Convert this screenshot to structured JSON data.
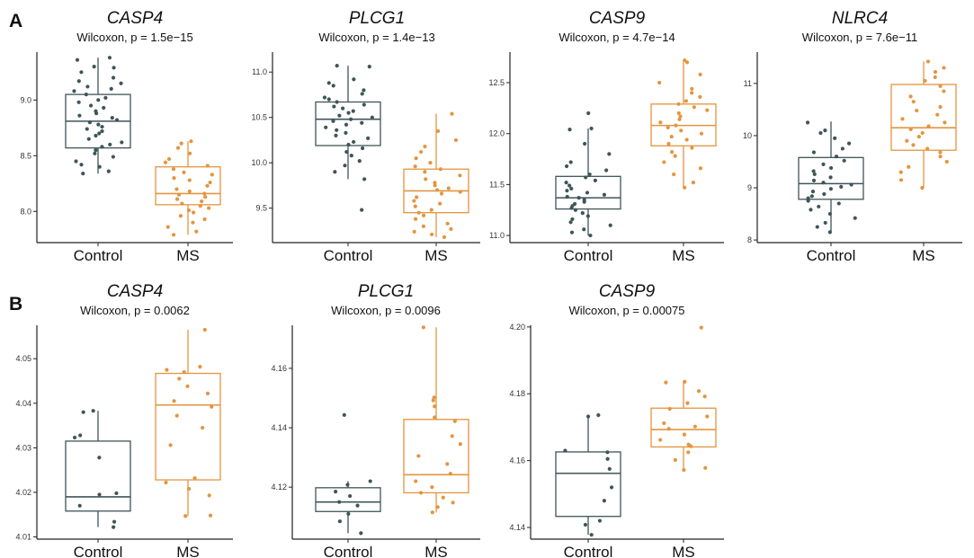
{
  "panel_labels": [
    "A",
    "B"
  ],
  "style": {
    "control_color": "#3f5559",
    "ms_color": "#e3953f"
  },
  "chart_data": [
    {
      "type": "box",
      "panel": "A",
      "title": "CASP4",
      "subtitle": "Wilcoxon, p = 1.5e−15",
      "categories": [
        "Control",
        "MS"
      ],
      "ylim": [
        7.72,
        9.43
      ],
      "yticks": [
        8.0,
        8.5,
        9.0
      ],
      "ytick_labels": [
        "8.0",
        "8.5",
        "9.0"
      ],
      "boxes": [
        {
          "category": "Control",
          "min": 8.34,
          "q1": 8.57,
          "median": 8.81,
          "q3": 9.05,
          "max": 9.38
        },
        {
          "category": "MS",
          "min": 7.79,
          "q1": 8.06,
          "median": 8.16,
          "q3": 8.4,
          "max": 8.63
        }
      ],
      "points": [
        [
          9.38,
          9.36,
          9.3,
          9.29,
          9.25,
          9.2,
          9.17,
          9.15,
          9.12,
          9.1,
          9.08,
          9.05,
          9.02,
          9.0,
          8.98,
          8.95,
          8.93,
          8.9,
          8.88,
          8.86,
          8.84,
          8.82,
          8.8,
          8.78,
          8.76,
          8.74,
          8.72,
          8.7,
          8.68,
          8.65,
          8.62,
          8.6,
          8.58,
          8.55,
          8.52,
          8.49,
          8.45,
          8.42,
          8.4,
          8.36,
          8.34
        ],
        [
          8.63,
          8.61,
          8.57,
          8.52,
          8.47,
          8.44,
          8.41,
          8.38,
          8.35,
          8.33,
          8.3,
          8.28,
          8.26,
          8.23,
          8.2,
          8.18,
          8.16,
          8.15,
          8.13,
          8.11,
          8.09,
          8.07,
          8.05,
          8.03,
          8.01,
          7.99,
          7.96,
          7.93,
          7.9,
          7.86,
          7.82,
          7.79
        ]
      ]
    },
    {
      "type": "box",
      "panel": "A",
      "title": "PLCG1",
      "subtitle": "Wilcoxon, p = 1.4e−13",
      "categories": [
        "Control",
        "MS"
      ],
      "ylim": [
        9.12,
        11.22
      ],
      "yticks": [
        9.5,
        10.0,
        10.5,
        11.0
      ],
      "ytick_labels": [
        "9.5",
        "10.0",
        "10.5",
        "11.0"
      ],
      "boxes": [
        {
          "category": "Control",
          "min": 9.82,
          "q1": 10.19,
          "median": 10.48,
          "q3": 10.67,
          "max": 11.07
        },
        {
          "category": "MS",
          "min": 9.18,
          "q1": 9.45,
          "median": 9.69,
          "q3": 9.93,
          "max": 10.54
        }
      ],
      "points": [
        [
          11.07,
          11.06,
          10.92,
          10.88,
          10.85,
          10.8,
          10.76,
          10.72,
          10.7,
          10.67,
          10.64,
          10.62,
          10.6,
          10.57,
          10.55,
          10.52,
          10.5,
          10.48,
          10.46,
          10.44,
          10.42,
          10.39,
          10.36,
          10.33,
          10.3,
          10.27,
          10.23,
          10.2,
          10.16,
          10.12,
          10.08,
          10.02,
          9.97,
          9.9,
          9.82,
          9.48
        ],
        [
          10.54,
          10.35,
          10.25,
          10.18,
          10.12,
          10.05,
          10.0,
          9.96,
          9.93,
          9.9,
          9.86,
          9.82,
          9.78,
          9.75,
          9.72,
          9.7,
          9.68,
          9.66,
          9.62,
          9.58,
          9.55,
          9.52,
          9.48,
          9.45,
          9.42,
          9.38,
          9.33,
          9.3,
          9.27,
          9.24,
          9.21,
          9.18
        ]
      ]
    },
    {
      "type": "box",
      "panel": "A",
      "title": "CASP9",
      "subtitle": "Wilcoxon, p = 4.7e−14",
      "categories": [
        "Control",
        "MS"
      ],
      "ylim": [
        10.93,
        12.8
      ],
      "yticks": [
        11.0,
        11.5,
        12.0,
        12.5
      ],
      "ytick_labels": [
        "11.0",
        "11.5",
        "12.0",
        "12.5"
      ],
      "boxes": [
        {
          "category": "Control",
          "min": 11.0,
          "q1": 11.26,
          "median": 11.37,
          "q3": 11.58,
          "max": 12.05
        },
        {
          "category": "MS",
          "min": 11.47,
          "q1": 11.88,
          "median": 12.08,
          "q3": 12.29,
          "max": 12.72
        }
      ],
      "points": [
        [
          12.2,
          12.05,
          12.04,
          11.9,
          11.8,
          11.72,
          11.68,
          11.64,
          11.6,
          11.57,
          11.54,
          11.52,
          11.49,
          11.46,
          11.44,
          11.42,
          11.4,
          11.38,
          11.37,
          11.35,
          11.33,
          11.31,
          11.29,
          11.27,
          11.25,
          11.22,
          11.19,
          11.16,
          11.13,
          11.1,
          11.06,
          11.03,
          11.0
        ],
        [
          12.72,
          12.7,
          12.58,
          12.5,
          12.44,
          12.4,
          12.36,
          12.32,
          12.29,
          12.26,
          12.23,
          12.2,
          12.17,
          12.14,
          12.11,
          12.08,
          12.06,
          12.03,
          12.0,
          11.97,
          11.94,
          11.9,
          11.86,
          11.82,
          11.78,
          11.72,
          11.66,
          11.6,
          11.52,
          11.47
        ]
      ]
    },
    {
      "type": "box",
      "panel": "A",
      "title": "NLRC4",
      "subtitle": "Wilcoxon, p = 7.6e−11",
      "categories": [
        "Control",
        "MS"
      ],
      "ylim": [
        7.95,
        11.6
      ],
      "yticks": [
        8,
        9,
        10,
        11
      ],
      "ytick_labels": [
        "8",
        "9",
        "10",
        "11"
      ],
      "boxes": [
        {
          "category": "Control",
          "min": 8.15,
          "q1": 8.78,
          "median": 9.08,
          "q3": 9.58,
          "max": 10.27
        },
        {
          "category": "MS",
          "min": 9.0,
          "q1": 9.72,
          "median": 10.15,
          "q3": 10.98,
          "max": 11.42
        }
      ],
      "points": [
        [
          10.25,
          10.1,
          10.05,
          9.95,
          9.85,
          9.75,
          9.68,
          9.6,
          9.52,
          9.45,
          9.38,
          9.32,
          9.26,
          9.2,
          9.14,
          9.1,
          9.06,
          9.02,
          8.98,
          8.93,
          8.88,
          8.84,
          8.8,
          8.75,
          8.7,
          8.64,
          8.58,
          8.5,
          8.42,
          8.33,
          8.25,
          8.15
        ],
        [
          11.42,
          11.3,
          11.22,
          11.12,
          11.05,
          10.95,
          10.85,
          10.75,
          10.65,
          10.55,
          10.48,
          10.4,
          10.32,
          10.25,
          10.18,
          10.12,
          10.05,
          9.98,
          9.9,
          9.82,
          9.75,
          9.68,
          9.6,
          9.5,
          9.4,
          9.3,
          9.15,
          9.0
        ]
      ]
    },
    {
      "type": "box",
      "panel": "B",
      "title": "CASP4",
      "subtitle": "Wilcoxon, p = 0.0062",
      "categories": [
        "Control",
        "MS"
      ],
      "ylim": [
        4.0095,
        4.0575
      ],
      "yticks": [
        4.01,
        4.02,
        4.03,
        4.04,
        4.05
      ],
      "ytick_labels": [
        "4.01",
        "4.02",
        "4.03",
        "4.04",
        "4.05"
      ],
      "boxes": [
        {
          "category": "Control",
          "min": 4.0122,
          "q1": 4.0158,
          "median": 4.019,
          "q3": 4.0315,
          "max": 4.0383
        },
        {
          "category": "MS",
          "min": 4.0147,
          "q1": 4.0228,
          "median": 4.0396,
          "q3": 4.0467,
          "max": 4.0565
        }
      ],
      "points": [
        [
          4.0383,
          4.038,
          4.0328,
          4.0323,
          4.0278,
          4.0198,
          4.0195,
          4.017,
          4.0134,
          4.0122
        ],
        [
          4.0565,
          4.0482,
          4.0475,
          4.047,
          4.0455,
          4.0438,
          4.0422,
          4.0405,
          4.0392,
          4.0372,
          4.0345,
          4.0306,
          4.0232,
          4.0222,
          4.0208,
          4.0193,
          4.0148,
          4.0147
        ]
      ]
    },
    {
      "type": "box",
      "panel": "B",
      "title": "PLCG1",
      "subtitle": "Wilcoxon, p = 0.0096",
      "categories": [
        "Control",
        "MS"
      ],
      "ylim": [
        4.1025,
        4.1745
      ],
      "yticks": [
        4.12,
        4.14,
        4.16
      ],
      "ytick_labels": [
        "4.12",
        "4.14",
        "4.16"
      ],
      "boxes": [
        {
          "category": "Control",
          "min": 4.1045,
          "q1": 4.1118,
          "median": 4.115,
          "q3": 4.1198,
          "max": 4.122
        },
        {
          "category": "MS",
          "min": 4.1115,
          "q1": 4.1181,
          "median": 4.1242,
          "q3": 4.1428,
          "max": 4.1738
        }
      ],
      "points": [
        [
          4.1443,
          4.122,
          4.1208,
          4.1185,
          4.117,
          4.115,
          4.1138,
          4.111,
          4.1085,
          4.1045
        ],
        [
          4.1738,
          4.1502,
          4.1492,
          4.1472,
          4.1435,
          4.1422,
          4.1372,
          4.1345,
          4.1305,
          4.1278,
          4.1245,
          4.122,
          4.12,
          4.1181,
          4.1165,
          4.1148,
          4.1133,
          4.1115
        ]
      ]
    },
    {
      "type": "box",
      "panel": "B",
      "title": "CASP9",
      "subtitle": "Wilcoxon, p = 0.00075",
      "categories": [
        "Control",
        "MS"
      ],
      "ylim": [
        4.1365,
        4.2005
      ],
      "yticks": [
        4.14,
        4.16,
        4.18,
        4.2
      ],
      "ytick_labels": [
        "4.14",
        "4.16",
        "4.18",
        "4.20"
      ],
      "boxes": [
        {
          "category": "Control",
          "min": 4.1378,
          "q1": 4.1433,
          "median": 4.1562,
          "q3": 4.1626,
          "max": 4.1736
        },
        {
          "category": "MS",
          "min": 4.1572,
          "q1": 4.1641,
          "median": 4.1693,
          "q3": 4.1757,
          "max": 4.1836
        }
      ],
      "points": [
        [
          4.1736,
          4.1732,
          4.163,
          4.1625,
          4.1605,
          4.1575,
          4.152,
          4.148,
          4.142,
          4.1408,
          4.1378
        ],
        [
          4.1998,
          4.1836,
          4.1834,
          4.1808,
          4.1792,
          4.1772,
          4.1755,
          4.1732,
          4.1712,
          4.1702,
          4.1695,
          4.1678,
          4.1662,
          4.1648,
          4.1643,
          4.1625,
          4.1602,
          4.1578,
          4.1572
        ]
      ]
    }
  ]
}
